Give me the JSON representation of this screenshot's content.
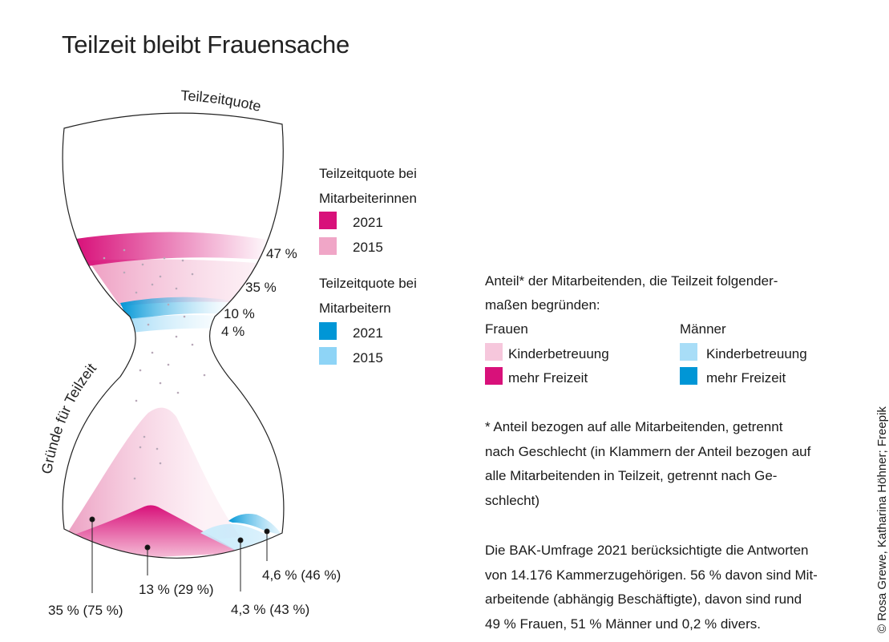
{
  "title": "Teilzeit bleibt Frauensache",
  "colors": {
    "women_2021": "#d8117a",
    "women_2015": "#f0a6c7",
    "men_2021": "#0096d6",
    "men_2015": "#8ed4f6",
    "women_childcare": "#f6c7dc",
    "women_leisure": "#d8117a",
    "men_childcare": "#a8ddf7",
    "men_leisure": "#0096d6"
  },
  "hourglass": {
    "top_label": "Teilzeitquote",
    "side_label": "Gründe für Teilzeit"
  },
  "legend_quote": {
    "women_heading_1": "Teilzeitquote bei",
    "women_heading_2": "Mitarbeiterinnen",
    "women_2021": "2021",
    "women_2015": "2015",
    "men_heading_1": "Teilzeitquote bei",
    "men_heading_2": "Mitarbeitern",
    "men_2021": "2021",
    "men_2015": "2015"
  },
  "chart_data": {
    "type": "infographic",
    "title": "Teilzeit bleibt Frauensache",
    "teilzeitquote": [
      {
        "group": "Mitarbeiterinnen",
        "year": "2021",
        "value": 47,
        "label": "47 %"
      },
      {
        "group": "Mitarbeiterinnen",
        "year": "2015",
        "value": 35,
        "label": "35 %"
      },
      {
        "group": "Mitarbeitern",
        "year": "2021",
        "value": 10,
        "label": "10 %"
      },
      {
        "group": "Mitarbeitern",
        "year": "2015",
        "value": 4,
        "label": "4 %"
      }
    ],
    "gruende": [
      {
        "group": "Frauen",
        "reason": "Kinderbetreuung",
        "value": 35,
        "value_parttime": 75,
        "label": "35 % (75 %)"
      },
      {
        "group": "Frauen",
        "reason": "mehr Freizeit",
        "value": 13,
        "value_parttime": 29,
        "label": "13 % (29 %)"
      },
      {
        "group": "Männer",
        "reason": "Kinderbetreuung",
        "value": 4.3,
        "value_parttime": 43,
        "label": "4,3 % (43 %)"
      },
      {
        "group": "Männer",
        "reason": "mehr Freizeit",
        "value": 4.6,
        "value_parttime": 46,
        "label": "4,6 % (46 %)"
      }
    ]
  },
  "legend_reasons": {
    "intro_1": "Anteil* der Mitarbeitenden, die Teilzeit folgender-",
    "intro_2": "maßen begründen:",
    "women_heading": "Frauen",
    "men_heading": "Männer",
    "women_childcare": "Kinderbetreuung",
    "women_leisure": "mehr Freizeit",
    "men_childcare": "Kinderbetreuung",
    "men_leisure": "mehr Freizeit"
  },
  "footnote": [
    "* Anteil bezogen auf alle Mitarbeitenden, getrennt",
    "nach Geschlecht (in Klammern der Anteil bezogen auf",
    "alle Mitarbeitenden in Teilzeit, getrennt nach Ge-",
    "schlecht)"
  ],
  "survey_note": [
    "Die BAK-Umfrage 2021 berücksichtigte die Antworten",
    "von 14.176 Kammerzugehörigen. 56 % davon sind Mit-",
    "arbeitende (abhängig Beschäftigte), davon sind rund",
    "49 % Frauen, 51 % Männer und 0,2 % divers."
  ],
  "credit": "© Rosa Grewe, Katharina Höhner; Freepik"
}
